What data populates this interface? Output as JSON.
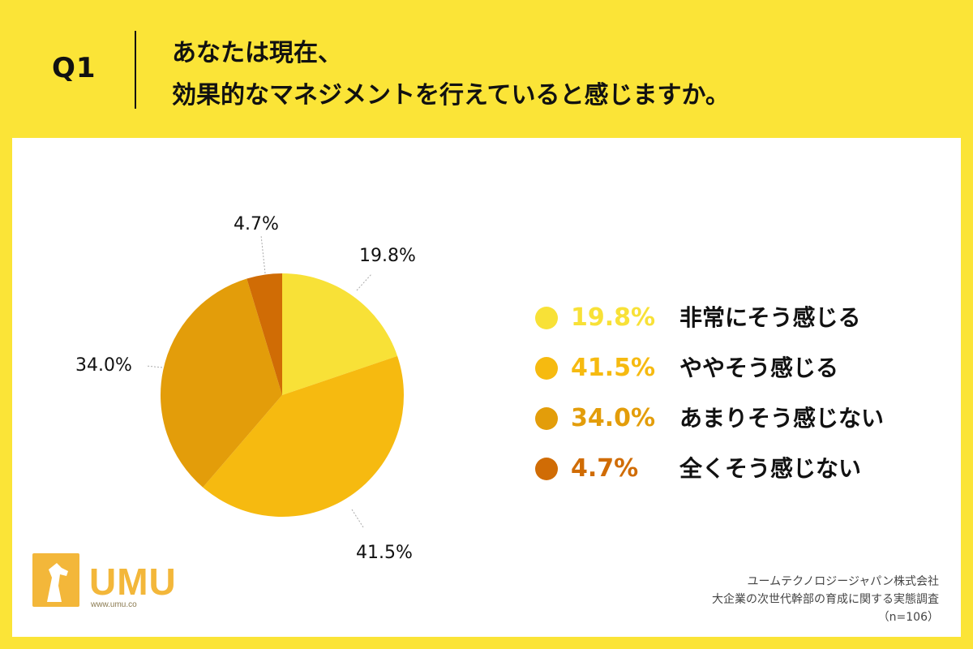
{
  "header": {
    "q_label": "Q1",
    "question_line1": "あなたは現在、",
    "question_line2": "効果的なマネジメントを行えていると感じますか。"
  },
  "chart_data": {
    "type": "pie",
    "categories": [
      "非常にそう感じる",
      "ややそう感じる",
      "あまりそう感じない",
      "全くそう感じない"
    ],
    "values": [
      19.8,
      41.5,
      34.0,
      4.7
    ],
    "labels": [
      "19.8%",
      "41.5%",
      "34.0%",
      "4.7%"
    ],
    "colors": [
      "#F8E137",
      "#F6BA10",
      "#E39D0A",
      "#D06C05"
    ],
    "start": "12 o'clock",
    "direction": "clockwise",
    "legend_position": "right"
  },
  "legend": {
    "items": [
      {
        "pct": "19.8%",
        "label": "非常にそう感じる",
        "color": "#F8E137"
      },
      {
        "pct": "41.5%",
        "label": "ややそう感じる",
        "color": "#F6BA10"
      },
      {
        "pct": "34.0%",
        "label": "あまりそう感じない",
        "color": "#E39D0A"
      },
      {
        "pct": "4.7%",
        "label": "全くそう感じない",
        "color": "#D06C05"
      }
    ]
  },
  "logo": {
    "text": "UMU",
    "url": "www.umu.co",
    "color": "#F3B73A",
    "icon": "horse-head-icon"
  },
  "source": {
    "company": "ユームテクノロジージャパン株式会社",
    "survey": "大企業の次世代幹部の育成に関する実態調査",
    "sample": "（n=106）"
  }
}
